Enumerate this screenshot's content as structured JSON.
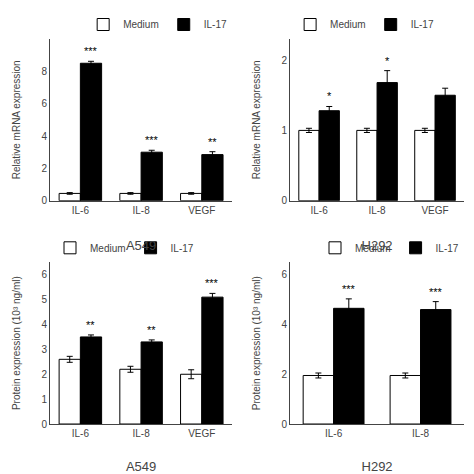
{
  "chart_data": [
    {
      "type": "bar",
      "xlabel": "A549",
      "ylabel": "Relative mRNA expression",
      "categories": [
        "IL-6",
        "IL-8",
        "VEGF"
      ],
      "series": [
        {
          "name": "Medium",
          "color": "white",
          "values": [
            0.45,
            0.45,
            0.45
          ],
          "errors": [
            0.05,
            0.05,
            0.05
          ]
        },
        {
          "name": "IL-17",
          "color": "black",
          "values": [
            8.5,
            3.0,
            2.85
          ],
          "errors": [
            0.12,
            0.12,
            0.18
          ]
        }
      ],
      "annotations": [
        {
          "category": "IL-6",
          "series": "IL-17",
          "text": "***"
        },
        {
          "category": "IL-8",
          "series": "IL-17",
          "text": "***"
        },
        {
          "category": "VEGF",
          "series": "IL-17",
          "text": "**"
        }
      ],
      "ylim": [
        0,
        10.0
      ],
      "yticks": [
        0,
        2,
        4,
        6,
        8
      ],
      "legend": "upper right",
      "grid": false
    },
    {
      "type": "bar",
      "xlabel": "H292",
      "ylabel": "Relative mRNA expression",
      "categories": [
        "IL-6",
        "IL-8",
        "VEGF"
      ],
      "series": [
        {
          "name": "Medium",
          "color": "white",
          "values": [
            1.0,
            1.0,
            1.0
          ],
          "errors": [
            0.03,
            0.03,
            0.03
          ]
        },
        {
          "name": "IL-17",
          "color": "black",
          "values": [
            1.28,
            1.68,
            1.5
          ],
          "errors": [
            0.06,
            0.17,
            0.1
          ]
        }
      ],
      "annotations": [
        {
          "category": "IL-6",
          "series": "IL-17",
          "text": "*"
        },
        {
          "category": "IL-8",
          "series": "IL-17",
          "text": "*"
        }
      ],
      "ylim": [
        0,
        2.3
      ],
      "yticks": [
        0,
        1,
        2
      ],
      "legend": "upper left",
      "grid": false
    },
    {
      "type": "bar",
      "xlabel": "A549",
      "ylabel": "Protein expression (10³ ng/ml)",
      "categories": [
        "IL-6",
        "IL-8",
        "VEGF"
      ],
      "series": [
        {
          "name": "Medium",
          "color": "white",
          "values": [
            2.6,
            2.2,
            2.0
          ],
          "errors": [
            0.12,
            0.12,
            0.18
          ]
        },
        {
          "name": "IL-17",
          "color": "black",
          "values": [
            3.5,
            3.3,
            5.1
          ],
          "errors": [
            0.08,
            0.08,
            0.15
          ]
        }
      ],
      "annotations": [
        {
          "category": "IL-6",
          "series": "IL-17",
          "text": "**"
        },
        {
          "category": "IL-8",
          "series": "IL-17",
          "text": "**"
        },
        {
          "category": "VEGF",
          "series": "IL-17",
          "text": "***"
        }
      ],
      "ylim": [
        0,
        6.5
      ],
      "yticks": [
        0,
        1,
        2,
        3,
        4,
        5,
        6
      ],
      "legend": "upper left",
      "grid": false
    },
    {
      "type": "bar",
      "xlabel": "H292",
      "ylabel": "Protein expression (10³ ng/ml)",
      "categories": [
        "IL-6",
        "IL-8"
      ],
      "series": [
        {
          "name": "Medium",
          "color": "white",
          "values": [
            1.95,
            1.95
          ],
          "errors": [
            0.1,
            0.1
          ]
        },
        {
          "name": "IL-17",
          "color": "black",
          "values": [
            4.65,
            4.6
          ],
          "errors": [
            0.38,
            0.32
          ]
        }
      ],
      "annotations": [
        {
          "category": "IL-6",
          "series": "IL-17",
          "text": "***"
        },
        {
          "category": "IL-8",
          "series": "IL-17",
          "text": "***"
        }
      ],
      "ylim": [
        0,
        6.5
      ],
      "yticks": [
        0,
        2,
        4,
        6
      ],
      "legend": "upper right",
      "grid": false
    }
  ]
}
